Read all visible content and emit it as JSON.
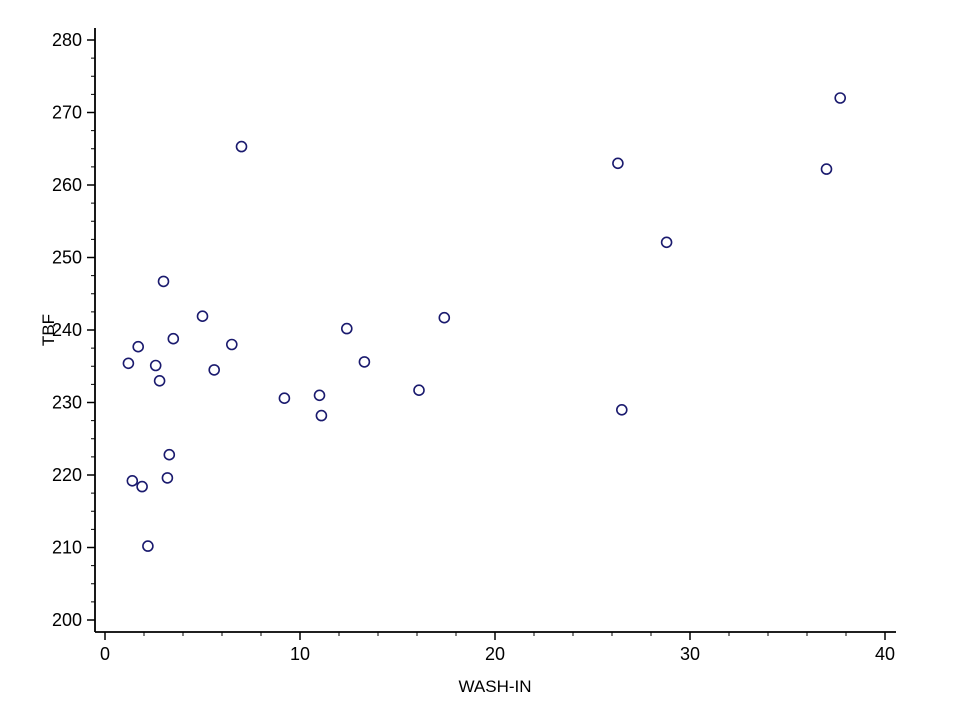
{
  "chart_data": {
    "type": "scatter",
    "title": "",
    "xlabel": "WASH-IN",
    "ylabel": "TBF",
    "xlim": [
      0,
      40
    ],
    "ylim": [
      200,
      280
    ],
    "x_major_ticks": [
      0,
      10,
      20,
      30,
      40
    ],
    "y_major_ticks": [
      200,
      210,
      220,
      230,
      240,
      250,
      260,
      270,
      280
    ],
    "x_minor_step": 2,
    "y_minor_step": 2.5,
    "grid": false,
    "legend": false,
    "marker": {
      "shape": "open-circle",
      "color": "#1a1a6e",
      "radius": 5
    },
    "points": [
      {
        "x": 1.2,
        "y": 235.4
      },
      {
        "x": 1.7,
        "y": 237.7
      },
      {
        "x": 1.4,
        "y": 219.2
      },
      {
        "x": 1.9,
        "y": 218.4
      },
      {
        "x": 2.2,
        "y": 210.2
      },
      {
        "x": 2.6,
        "y": 235.1
      },
      {
        "x": 2.8,
        "y": 233.0
      },
      {
        "x": 3.0,
        "y": 246.7
      },
      {
        "x": 3.2,
        "y": 219.6
      },
      {
        "x": 3.3,
        "y": 222.8
      },
      {
        "x": 3.5,
        "y": 238.8
      },
      {
        "x": 5.0,
        "y": 241.9
      },
      {
        "x": 5.6,
        "y": 234.5
      },
      {
        "x": 6.5,
        "y": 238.0
      },
      {
        "x": 7.0,
        "y": 265.3
      },
      {
        "x": 9.2,
        "y": 230.6
      },
      {
        "x": 11.0,
        "y": 231.0
      },
      {
        "x": 11.1,
        "y": 228.2
      },
      {
        "x": 12.4,
        "y": 240.2
      },
      {
        "x": 13.3,
        "y": 235.6
      },
      {
        "x": 16.1,
        "y": 231.7
      },
      {
        "x": 17.4,
        "y": 241.7
      },
      {
        "x": 26.3,
        "y": 263.0
      },
      {
        "x": 26.5,
        "y": 229.0
      },
      {
        "x": 28.8,
        "y": 252.1
      },
      {
        "x": 37.0,
        "y": 262.2
      },
      {
        "x": 37.7,
        "y": 272.0
      }
    ]
  },
  "colors": {
    "axis": "#000000",
    "marker": "#1a1a6e",
    "background": "#ffffff",
    "text": "#000000"
  }
}
